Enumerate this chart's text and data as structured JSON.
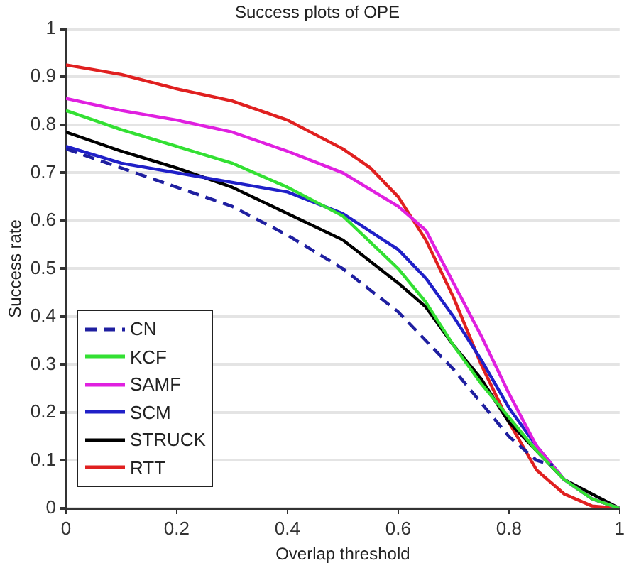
{
  "chart_data": {
    "type": "line",
    "title": "Success plots of OPE",
    "xlabel": "Overlap threshold",
    "ylabel": "Success rate",
    "xlim": [
      0,
      1
    ],
    "ylim": [
      0,
      1
    ],
    "xticks": [
      0,
      0.2,
      0.4,
      0.6,
      0.8,
      1
    ],
    "yticks": [
      0,
      0.1,
      0.2,
      0.3,
      0.4,
      0.5,
      0.6,
      0.7,
      0.8,
      0.9,
      1
    ],
    "grid": "y",
    "legend": "bottom left",
    "marker": "none",
    "series": [
      {
        "name": "CN",
        "color": "#1f1fa0",
        "line_style": "dashed",
        "x": [
          0,
          0.1,
          0.2,
          0.3,
          0.4,
          0.5,
          0.6,
          0.65,
          0.7,
          0.75,
          0.8,
          0.85,
          0.88
        ],
        "values": [
          0.75,
          0.71,
          0.67,
          0.63,
          0.57,
          0.5,
          0.41,
          0.35,
          0.29,
          0.22,
          0.15,
          0.1,
          0.09
        ]
      },
      {
        "name": "KCF",
        "color": "#33e033",
        "line_style": "solid",
        "x": [
          0,
          0.1,
          0.2,
          0.3,
          0.4,
          0.5,
          0.6,
          0.65,
          0.7,
          0.75,
          0.8,
          0.85,
          0.9,
          0.95,
          1
        ],
        "values": [
          0.83,
          0.79,
          0.755,
          0.72,
          0.67,
          0.61,
          0.5,
          0.43,
          0.34,
          0.26,
          0.19,
          0.12,
          0.06,
          0.02,
          0
        ]
      },
      {
        "name": "SAMF",
        "color": "#e020e0",
        "line_style": "solid",
        "x": [
          0,
          0.1,
          0.2,
          0.3,
          0.4,
          0.5,
          0.6,
          0.65,
          0.7,
          0.75,
          0.8,
          0.85,
          0.9,
          0.95,
          1
        ],
        "values": [
          0.855,
          0.83,
          0.81,
          0.785,
          0.745,
          0.7,
          0.63,
          0.58,
          0.47,
          0.36,
          0.24,
          0.13,
          0.06,
          0.02,
          0
        ]
      },
      {
        "name": "SCM",
        "color": "#2020c8",
        "line_style": "solid",
        "x": [
          0,
          0.1,
          0.2,
          0.3,
          0.4,
          0.5,
          0.6,
          0.65,
          0.7,
          0.75,
          0.8,
          0.85,
          0.9,
          0.95,
          1
        ],
        "values": [
          0.755,
          0.72,
          0.7,
          0.68,
          0.66,
          0.615,
          0.54,
          0.48,
          0.4,
          0.31,
          0.21,
          0.13,
          0.06,
          0.02,
          0
        ]
      },
      {
        "name": "STRUCK",
        "color": "#000000",
        "line_style": "solid",
        "x": [
          0,
          0.1,
          0.2,
          0.3,
          0.4,
          0.5,
          0.6,
          0.65,
          0.7,
          0.75,
          0.8,
          0.85,
          0.9,
          0.95,
          1
        ],
        "values": [
          0.785,
          0.745,
          0.71,
          0.67,
          0.615,
          0.56,
          0.47,
          0.42,
          0.34,
          0.27,
          0.18,
          0.12,
          0.06,
          0.03,
          0
        ]
      },
      {
        "name": "RTT",
        "color": "#e02020",
        "line_style": "solid",
        "x": [
          0,
          0.1,
          0.2,
          0.3,
          0.4,
          0.5,
          0.55,
          0.6,
          0.65,
          0.7,
          0.75,
          0.8,
          0.85,
          0.9,
          0.95,
          1
        ],
        "values": [
          0.925,
          0.905,
          0.875,
          0.85,
          0.81,
          0.75,
          0.71,
          0.65,
          0.56,
          0.44,
          0.3,
          0.18,
          0.08,
          0.03,
          0.005,
          0
        ]
      }
    ]
  }
}
